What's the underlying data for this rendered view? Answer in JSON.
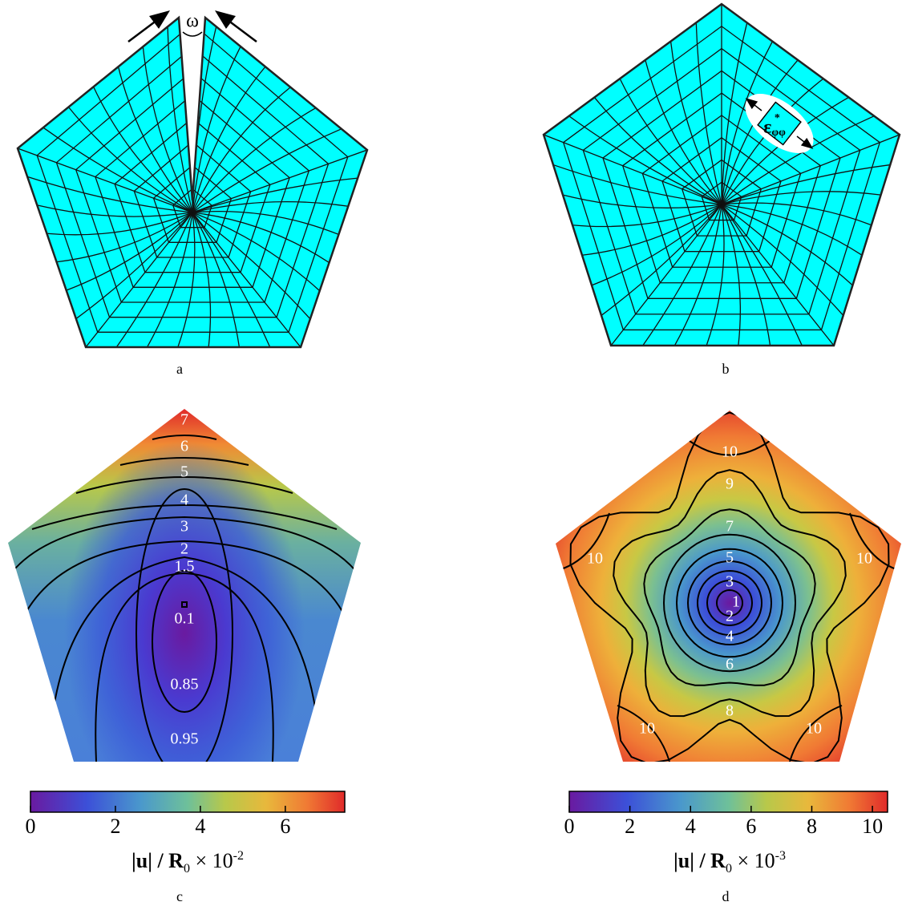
{
  "panels": [
    {
      "label": "a",
      "angle_label": "ω"
    },
    {
      "label": "b",
      "strain_label": {
        "symbol": "ε",
        "sub": "φφ",
        "sup": "*"
      }
    },
    {
      "label": "c",
      "contour_labels": [
        7,
        6,
        5,
        4,
        3,
        2,
        1.5,
        0.1,
        0.85,
        0.95
      ],
      "colorbar": {
        "lim": [
          0,
          7.4
        ],
        "ticks": [
          0,
          2,
          4,
          6
        ],
        "title": {
          "text": "|u| / R",
          "sub": "0",
          "tail": " × 10",
          "sup": "-2"
        }
      }
    },
    {
      "label": "d",
      "contour_labels": [
        10,
        10,
        10,
        10,
        10,
        9,
        7,
        5,
        3,
        1,
        2,
        4,
        6,
        8
      ],
      "colorbar": {
        "lim": [
          0,
          10.5
        ],
        "ticks": [
          0,
          2,
          4,
          6,
          8,
          10
        ],
        "title": {
          "text": "|u| / R",
          "sub": "0",
          "tail": " × 10",
          "sup": "-3"
        }
      }
    }
  ]
}
